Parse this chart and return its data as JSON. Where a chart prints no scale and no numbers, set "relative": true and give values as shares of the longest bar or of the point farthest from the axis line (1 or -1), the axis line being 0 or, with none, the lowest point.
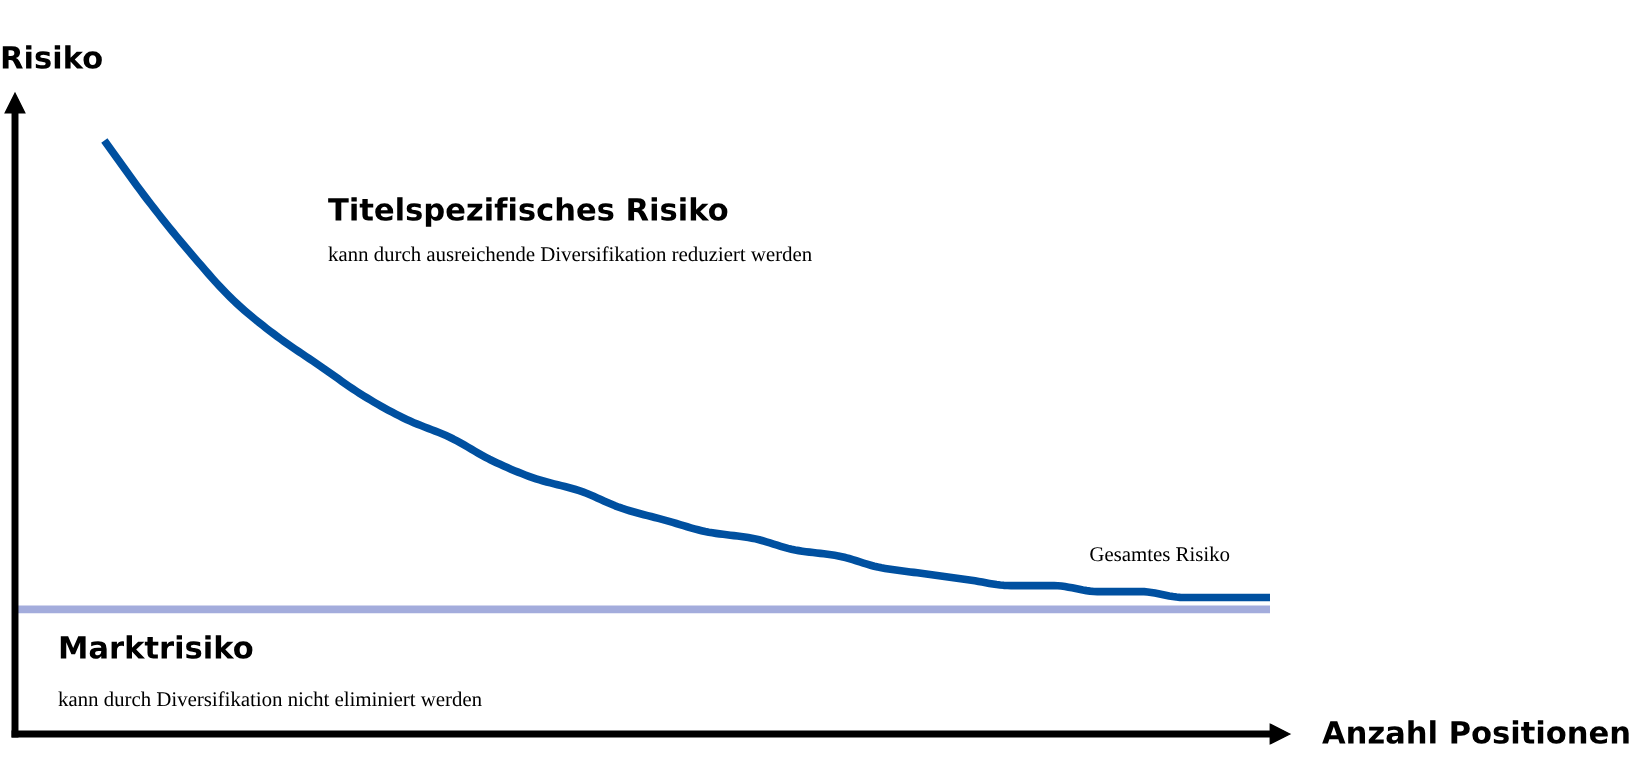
{
  "chart_data": {
    "type": "line",
    "relative": true,
    "ylabel": "Risiko",
    "xlabel": "Anzahl Positionen",
    "categories": [
      null,
      null,
      null,
      null,
      null,
      null,
      null,
      null,
      null,
      null,
      null,
      null,
      null,
      null,
      null,
      null,
      null,
      null,
      null,
      null,
      null,
      null,
      null,
      null,
      null,
      null,
      null,
      null,
      null,
      null
    ],
    "series": [
      {
        "name": "Gesamtes Risiko",
        "color": "#0050a0",
        "values": [
          null,
          null,
          1.0,
          0.9,
          0.81,
          0.73,
          0.67,
          0.62,
          0.57,
          0.53,
          0.5,
          0.46,
          0.43,
          0.41,
          0.38,
          0.36,
          0.34,
          0.33,
          0.31,
          0.3,
          0.28,
          0.27,
          0.26,
          0.25,
          0.25,
          0.24,
          0.24,
          0.23,
          0.23,
          0.23
        ]
      },
      {
        "name": "Marktrisiko",
        "color": "#a3acdc",
        "values": [
          0.21,
          0.21,
          0.21,
          0.21,
          0.21,
          0.21,
          0.21,
          0.21,
          0.21,
          0.21,
          0.21,
          0.21,
          0.21,
          0.21,
          0.21,
          0.21,
          0.21,
          0.21,
          0.21,
          0.21,
          0.21,
          0.21,
          0.21,
          0.21,
          0.21,
          0.21,
          0.21,
          0.21,
          0.21,
          0.21
        ]
      }
    ],
    "annotations": [
      "Titelspezifisches Risiko",
      "kann durch ausreichende Diversifikation reduziert werden",
      "kann durch Diversifikation nicht eliminiert werden"
    ],
    "legend": false,
    "tick_labels": false,
    "line_style": "solid",
    "marker": "none"
  }
}
